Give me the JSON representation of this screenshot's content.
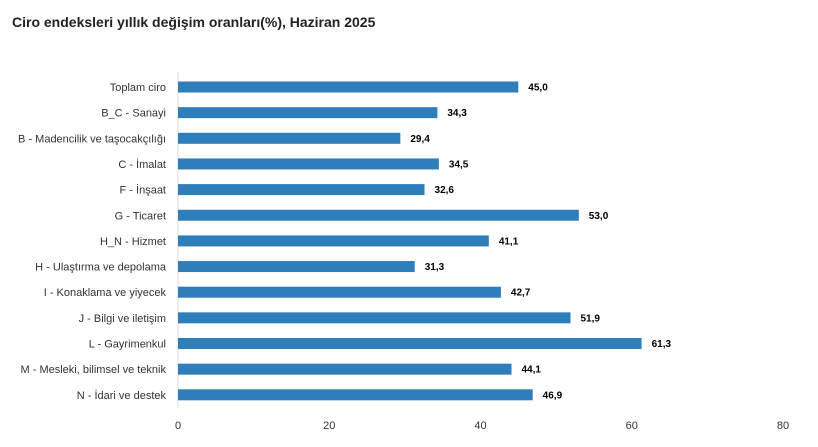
{
  "title": "Ciro endeksleri yıllık değişim oranları(%), Haziran 2025",
  "chart_data": {
    "type": "bar",
    "orientation": "horizontal",
    "title": "Ciro endeksleri yıllık değişim oranları(%), Haziran 2025",
    "categories": [
      "Toplam ciro",
      "B_C - Sanayi",
      "B - Madencilik ve taşocakçılığı",
      "C - İmalat",
      "F - İnşaat",
      "G - Ticaret",
      "H_N - Hizmet",
      "H - Ulaştırma ve depolama",
      "I - Konaklama ve yiyecek",
      "J - Bilgi ve iletişim",
      "L - Gayrimenkul",
      "M - Mesleki, bilimsel ve teknik",
      "N - İdari ve destek"
    ],
    "values": [
      45.0,
      34.3,
      29.4,
      34.5,
      32.6,
      53.0,
      41.1,
      31.3,
      42.7,
      51.9,
      61.3,
      44.1,
      46.9
    ],
    "value_labels": [
      "45,0",
      "34,3",
      "29,4",
      "34,5",
      "32,6",
      "53,0",
      "41,1",
      "31,3",
      "42,7",
      "51,9",
      "61,3",
      "44,1",
      "46,9"
    ],
    "xlim": [
      0,
      80
    ],
    "xticks": [
      0,
      20,
      40,
      60,
      80
    ],
    "xtick_labels": [
      "0",
      "20",
      "40",
      "60",
      "80"
    ],
    "xlabel": "",
    "ylabel": "",
    "bar_color": "#2f7ebc",
    "grid": false,
    "legend": "none"
  }
}
